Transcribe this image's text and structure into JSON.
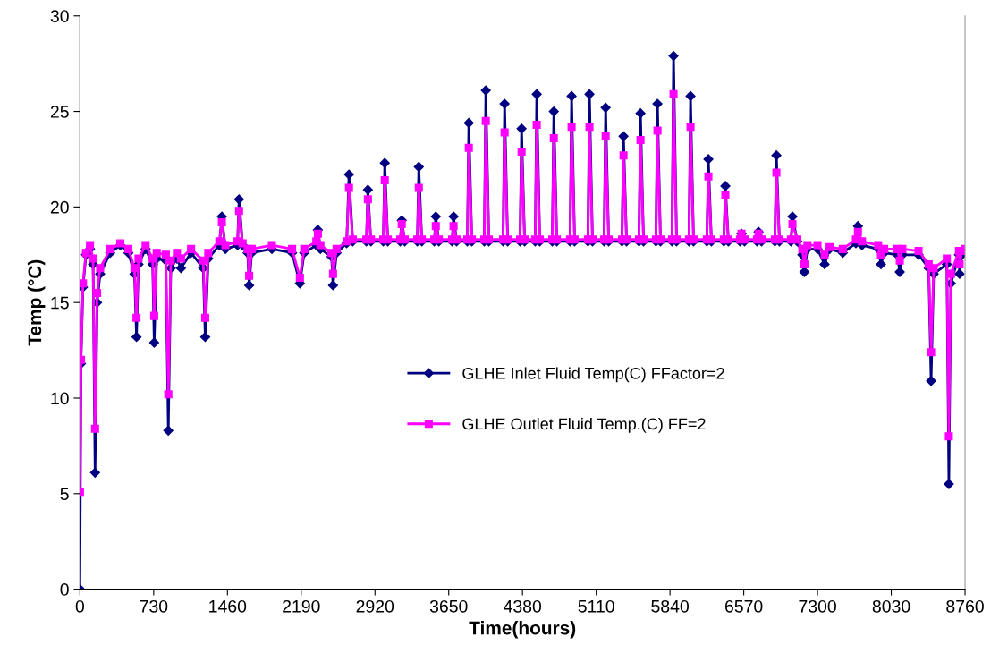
{
  "chart_data": {
    "type": "line",
    "xlabel": "Time(hours)",
    "ylabel": "Temp (°C)",
    "x": [
      0,
      10,
      30,
      60,
      100,
      130,
      150,
      170,
      200,
      300,
      400,
      480,
      540,
      560,
      580,
      650,
      720,
      735,
      760,
      850,
      875,
      900,
      960,
      1000,
      1100,
      1220,
      1240,
      1270,
      1380,
      1405,
      1440,
      1560,
      1575,
      1610,
      1660,
      1675,
      1700,
      1900,
      2100,
      2177,
      2220,
      2340,
      2355,
      2380,
      2490,
      2505,
      2540,
      2640,
      2663,
      2700,
      2835,
      2850,
      2880,
      3002,
      3017,
      3047,
      3170,
      3185,
      3215,
      3339,
      3354,
      3384,
      3507,
      3522,
      3552,
      3683,
      3698,
      3728,
      3834,
      3849,
      3879,
      4002,
      4017,
      4047,
      4188,
      4203,
      4233,
      4356,
      4371,
      4401,
      4506,
      4521,
      4551,
      4675,
      4690,
      4720,
      4851,
      4866,
      4896,
      5028,
      5043,
      5073,
      5188,
      5203,
      5233,
      5365,
      5380,
      5410,
      5533,
      5548,
      5578,
      5701,
      5716,
      5746,
      5860,
      5875,
      5905,
      6028,
      6043,
      6073,
      6205,
      6220,
      6250,
      6373,
      6388,
      6418,
      6533,
      6548,
      6578,
      6701,
      6716,
      6746,
      6878,
      6893,
      6923,
      7037,
      7052,
      7100,
      7150,
      7170,
      7200,
      7300,
      7370,
      7420,
      7550,
      7680,
      7700,
      7740,
      7900,
      7928,
      7960,
      8090,
      8114,
      8140,
      8300,
      8400,
      8424,
      8450,
      8580,
      8600,
      8620,
      8700,
      8706,
      8730,
      8760
    ],
    "series": [
      {
        "name": "GLHE Inlet Fluid Temp(C) FFactor=2",
        "color": "#000080",
        "marker": "diamond",
        "values": [
          0,
          11.8,
          15.8,
          17.5,
          17.8,
          17.0,
          6.1,
          15.0,
          16.5,
          17.6,
          18.0,
          17.6,
          16.5,
          13.2,
          17.0,
          17.8,
          17.0,
          12.9,
          17.3,
          17.2,
          8.3,
          16.8,
          17.3,
          16.8,
          17.6,
          16.8,
          13.2,
          17.3,
          18.0,
          19.5,
          17.8,
          18.0,
          20.4,
          18.0,
          17.6,
          15.9,
          17.6,
          17.8,
          17.6,
          16.0,
          17.6,
          18.0,
          18.8,
          17.8,
          17.4,
          15.9,
          17.6,
          18.1,
          21.7,
          18.2,
          18.2,
          20.9,
          18.2,
          18.2,
          22.3,
          18.2,
          18.2,
          19.3,
          18.2,
          18.2,
          22.1,
          18.2,
          18.2,
          19.5,
          18.2,
          18.2,
          19.5,
          18.2,
          18.2,
          24.4,
          18.2,
          18.2,
          26.1,
          18.2,
          18.2,
          25.4,
          18.2,
          18.2,
          24.1,
          18.2,
          18.2,
          25.9,
          18.2,
          18.2,
          25.0,
          18.2,
          18.2,
          25.8,
          18.2,
          18.2,
          25.9,
          18.2,
          18.2,
          25.2,
          18.2,
          18.2,
          23.7,
          18.2,
          18.2,
          24.9,
          18.2,
          18.2,
          25.4,
          18.2,
          18.2,
          27.9,
          18.2,
          18.2,
          25.8,
          18.2,
          18.2,
          22.5,
          18.2,
          18.2,
          21.1,
          18.2,
          18.2,
          18.6,
          18.2,
          18.2,
          18.7,
          18.2,
          18.2,
          22.7,
          18.2,
          18.2,
          19.5,
          18.2,
          17.5,
          16.6,
          17.8,
          17.8,
          17.0,
          17.8,
          17.6,
          18.1,
          19.0,
          18.0,
          17.8,
          17.0,
          17.6,
          17.5,
          16.6,
          17.5,
          17.5,
          16.8,
          10.9,
          16.5,
          17.0,
          5.5,
          16.0,
          17.5,
          16.5,
          17.5,
          17.6
        ]
      },
      {
        "name": "GLHE Outlet Fluid Temp.(C) FF=2",
        "color": "#ff00ff",
        "marker": "square",
        "values": [
          5.1,
          12.0,
          16.0,
          17.6,
          18.0,
          17.3,
          8.4,
          15.5,
          16.8,
          17.8,
          18.1,
          17.8,
          16.8,
          14.2,
          17.3,
          18.0,
          17.3,
          14.3,
          17.6,
          17.5,
          10.2,
          17.2,
          17.6,
          17.3,
          17.8,
          17.2,
          14.2,
          17.6,
          18.2,
          19.2,
          18.0,
          18.2,
          19.8,
          18.1,
          17.8,
          16.4,
          17.8,
          18.0,
          17.8,
          16.3,
          17.8,
          18.2,
          18.6,
          18.0,
          17.6,
          16.5,
          17.8,
          18.2,
          21.0,
          18.3,
          18.3,
          20.4,
          18.3,
          18.3,
          21.4,
          18.3,
          18.3,
          19.1,
          18.3,
          18.3,
          21.0,
          18.3,
          18.3,
          19.0,
          18.3,
          18.3,
          19.0,
          18.3,
          18.3,
          23.1,
          18.3,
          18.3,
          24.5,
          18.3,
          18.3,
          23.9,
          18.3,
          18.3,
          22.9,
          18.3,
          18.3,
          24.3,
          18.3,
          18.3,
          23.6,
          18.3,
          18.3,
          24.2,
          18.3,
          18.3,
          24.2,
          18.3,
          18.3,
          23.7,
          18.3,
          18.3,
          22.7,
          18.3,
          18.3,
          23.5,
          18.3,
          18.3,
          24.0,
          18.3,
          18.3,
          25.9,
          18.3,
          18.3,
          24.2,
          18.3,
          18.3,
          21.6,
          18.3,
          18.3,
          20.6,
          18.3,
          18.3,
          18.6,
          18.3,
          18.3,
          18.6,
          18.3,
          18.3,
          21.8,
          18.3,
          18.3,
          19.1,
          18.3,
          17.8,
          17.0,
          18.0,
          18.0,
          17.5,
          17.9,
          17.8,
          18.3,
          18.7,
          18.2,
          18.0,
          17.5,
          17.8,
          17.8,
          17.2,
          17.8,
          17.7,
          17.0,
          12.4,
          16.8,
          17.3,
          8.0,
          16.5,
          17.7,
          17.0,
          17.7,
          17.8
        ]
      }
    ],
    "xlim": [
      0,
      8760
    ],
    "xticks": [
      0,
      730,
      1460,
      2190,
      2920,
      3650,
      4380,
      5110,
      5840,
      6570,
      7300,
      8030,
      8760
    ],
    "ylim": [
      0,
      30
    ],
    "yticks": [
      0,
      5,
      10,
      15,
      20,
      25,
      30
    ],
    "legend": "center",
    "grid": false,
    "line_style": "solid"
  }
}
